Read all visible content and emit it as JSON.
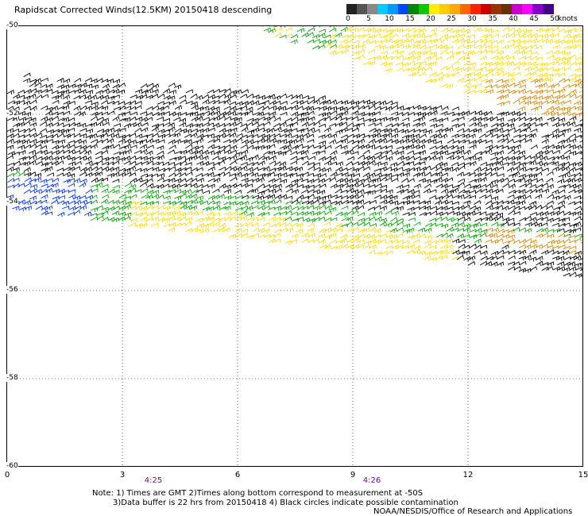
{
  "title": "Rapidscat Corrected Winds(12.5KM) 20150418 descending",
  "colorbar": {
    "labels": [
      "0",
      "5",
      "10",
      "15",
      "20",
      "25",
      "30",
      "35",
      "40",
      "45",
      "50"
    ],
    "units": "knots",
    "colors": [
      "#222222",
      "#555555",
      "#888888",
      "#00ccff",
      "#0099ff",
      "#0044ff",
      "#008800",
      "#00cc00",
      "#ffee00",
      "#ffcc00",
      "#ffaa00",
      "#ff6600",
      "#ff2200",
      "#cc0000",
      "#993300",
      "#663300",
      "#cc00cc",
      "#ff00ff",
      "#8800cc",
      "#440088"
    ]
  },
  "axes": {
    "y_labels": [
      "-50",
      "-52",
      "-54",
      "-56",
      "-58",
      "-60"
    ],
    "x_labels": [
      "0",
      "3",
      "6",
      "9",
      "12",
      "15"
    ],
    "time_labels": [
      "4:25",
      "4:26"
    ]
  },
  "notes": {
    "line1": "Note: 1) Times are GMT 2)Times along bottom correspond to measurement at -50S",
    "line2": "3)Data buffer is 22 hrs from 20150418 4) Black circles indicate possible contamination",
    "credit": "NOAA/NESDIS/Office of Research and Applications"
  },
  "wind_colors": {
    "calm": "#000000",
    "moderate": "#00aa00",
    "strong": "#ffdd00",
    "gale": "#dd8800",
    "light": "#0033ff"
  }
}
